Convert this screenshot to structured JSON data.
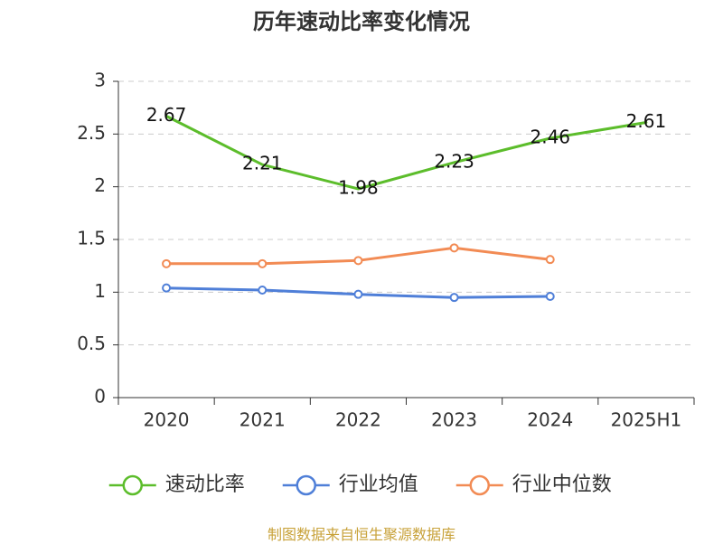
{
  "chart_data": {
    "type": "line",
    "title": "历年速动比率变化情况",
    "categories": [
      "2020",
      "2021",
      "2022",
      "2023",
      "2024",
      "2025H1"
    ],
    "y_ticks": [
      "0",
      "0.5",
      "1",
      "1.5",
      "2",
      "2.5",
      "3"
    ],
    "ylim": [
      0,
      3
    ],
    "grid": true,
    "legend_position": "bottom",
    "series": [
      {
        "name": "速动比率",
        "color": "#5cbd2b",
        "values": [
          2.67,
          2.21,
          1.98,
          2.23,
          2.46,
          2.61
        ],
        "value_labels": [
          "2.67",
          "2.21",
          "1.98",
          "2.23",
          "2.46",
          "2.61"
        ],
        "show_labels": true,
        "markers": false
      },
      {
        "name": "行业均值",
        "color": "#4f7fd8",
        "values": [
          1.04,
          1.02,
          0.98,
          0.95,
          0.96,
          null
        ],
        "show_labels": false,
        "markers": true
      },
      {
        "name": "行业中位数",
        "color": "#f28b54",
        "values": [
          1.27,
          1.27,
          1.3,
          1.42,
          1.31,
          null
        ],
        "show_labels": false,
        "markers": true
      }
    ]
  },
  "footer": {
    "source": "制图数据来自恒生聚源数据库"
  }
}
